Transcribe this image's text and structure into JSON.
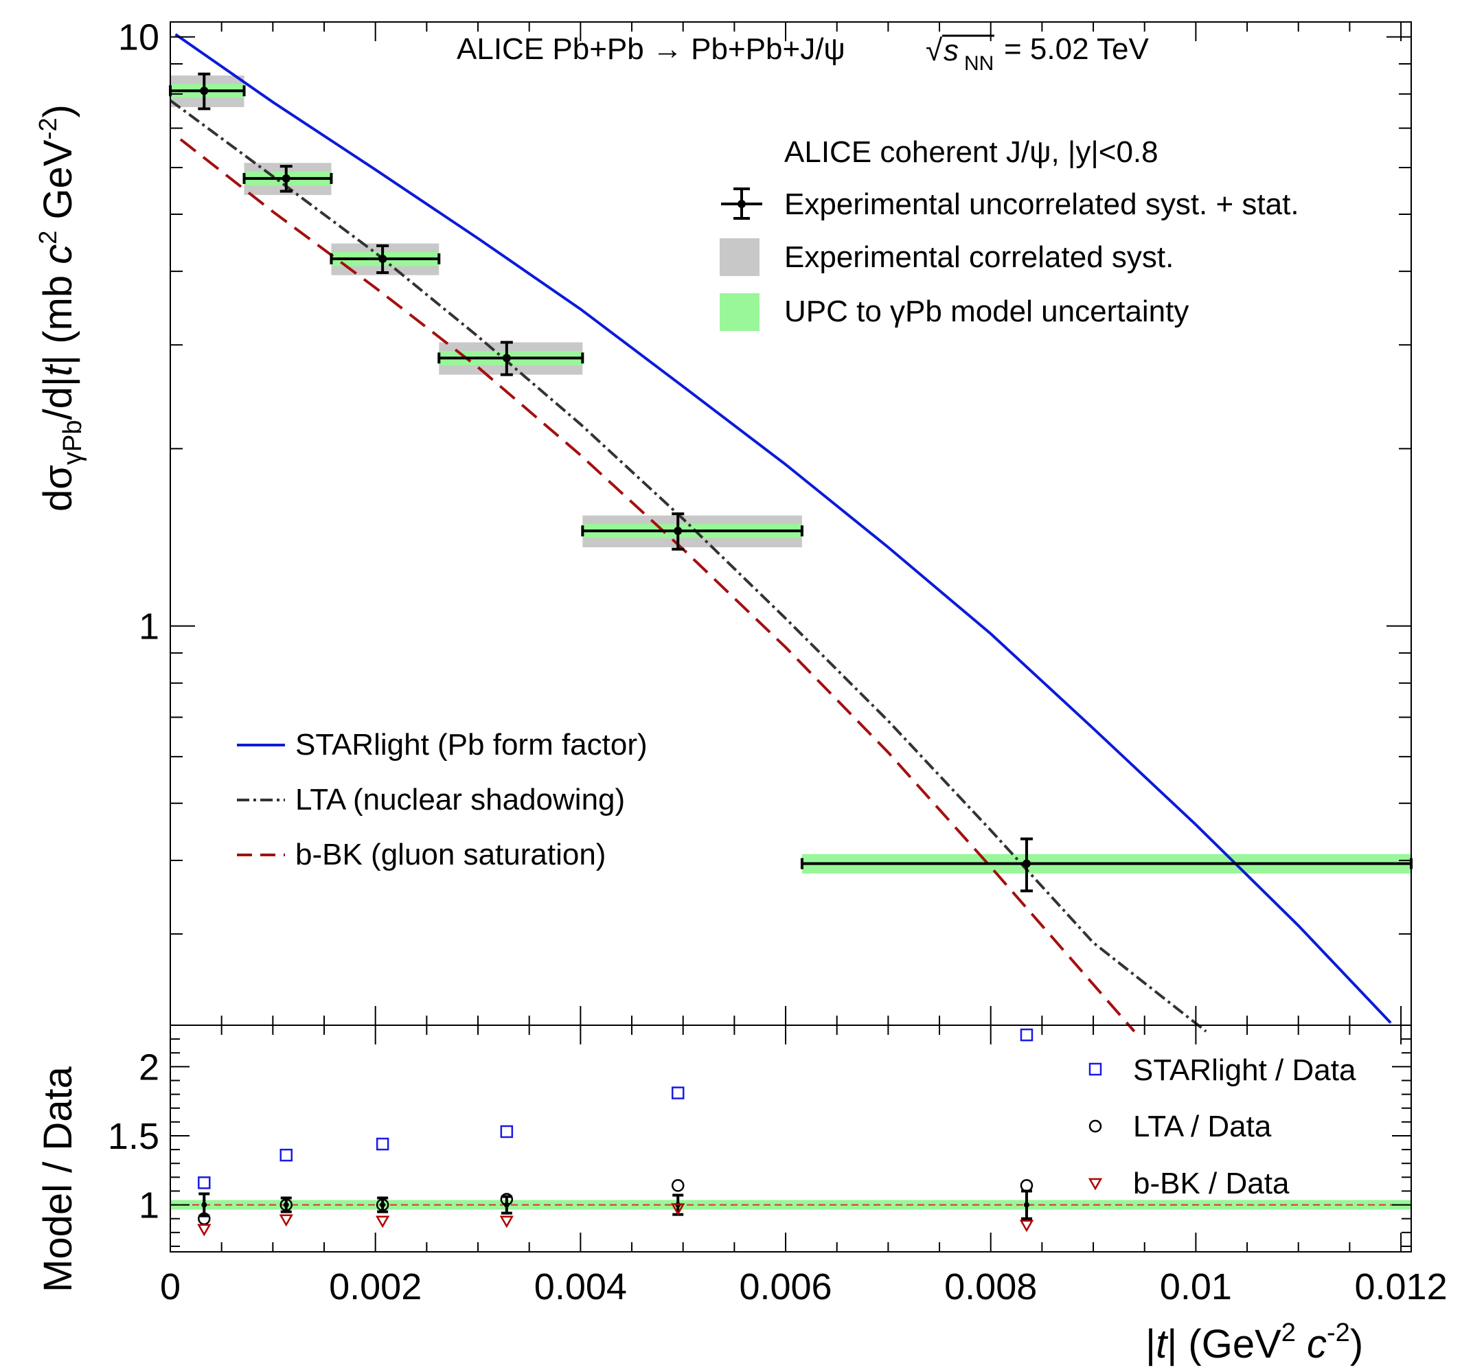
{
  "chart_data": {
    "type": "scatter",
    "title": "ALICE Pb+Pb → Pb+Pb+J/ψ",
    "energy_label": "= 5.02 TeV",
    "energy_symbol": {
      "sqrt": "√",
      "s": "s",
      "sub": "NN"
    },
    "xlabel": "|t| (GeV² c⁻²)",
    "xlabel_parts": {
      "open": "|",
      "t": "t",
      "close": "| (GeV",
      "sup2": "2",
      "c": " c",
      "supm2": "-2",
      "end": ")"
    },
    "ylabel": "dσγPb/d|t| (mb c² GeV⁻²)",
    "ylabel_parts": {
      "d": "dσ",
      "sub": "γPb",
      "mid": "/d|",
      "t": "t",
      "rest": "| (mb ",
      "c": "c",
      "sup2": "2",
      "gev": " GeV",
      "supm2": "-2",
      "end": ")"
    },
    "ratio_ylabel": "Model / Data",
    "xlim": [
      0,
      0.0121
    ],
    "ylim": [
      0.21,
      10.6
    ],
    "ratio_ylim": [
      0.66,
      2.3
    ],
    "x_ticks": [
      0,
      0.002,
      0.004,
      0.006,
      0.008,
      0.01,
      0.012
    ],
    "x_tick_labels": [
      "0",
      "0.002",
      "0.004",
      "0.006",
      "0.008",
      "0.01",
      "0.012"
    ],
    "y_major_ticks": [
      1,
      10
    ],
    "y_major_labels": [
      "1",
      "10"
    ],
    "ratio_ticks": [
      1,
      1.5,
      2
    ],
    "ratio_tick_labels": [
      "1",
      "1.5",
      "2"
    ],
    "data": {
      "name": "ALICE coherent J/ψ, |y|<0.8",
      "x": [
        0.00033,
        0.00113,
        0.00207,
        0.00328,
        0.00495,
        0.00835
      ],
      "x_low": [
        0,
        0.00072,
        0.00157,
        0.00262,
        0.00402,
        0.00616
      ],
      "x_high": [
        0.00072,
        0.00157,
        0.00262,
        0.00402,
        0.00616,
        0.0121
      ],
      "y": [
        8.1,
        5.75,
        4.2,
        2.85,
        1.45,
        0.395
      ],
      "err": [
        0.55,
        0.28,
        0.22,
        0.18,
        0.1,
        0.04
      ],
      "syst_corr_half": [
        0.5,
        0.36,
        0.26,
        0.18,
        0.09,
        0.0
      ],
      "model_unc_half": [
        0.22,
        0.16,
        0.12,
        0.08,
        0.04,
        0.015
      ]
    },
    "series": [
      {
        "name": "STARlight (Pb form factor)",
        "color": "#0b1bd9",
        "style": "solid",
        "x": [
          5e-05,
          0.001,
          0.002,
          0.003,
          0.004,
          0.005,
          0.006,
          0.007,
          0.008,
          0.009,
          0.01,
          0.011,
          0.0119
        ],
        "y": [
          10.1,
          7.75,
          5.95,
          4.55,
          3.45,
          2.55,
          1.88,
          1.36,
          0.97,
          0.67,
          0.46,
          0.31,
          0.212
        ]
      },
      {
        "name": "LTA (nuclear shadowing)",
        "color": "#333333",
        "style": "dashdot",
        "x": [
          0.0,
          0.001,
          0.002,
          0.003,
          0.004,
          0.005,
          0.006,
          0.007,
          0.008,
          0.009,
          0.0101
        ],
        "y": [
          7.8,
          5.8,
          4.3,
          3.1,
          2.2,
          1.52,
          1.03,
          0.69,
          0.45,
          0.29,
          0.205
        ]
      },
      {
        "name": "b-BK (gluon saturation)",
        "color": "#a50f0f",
        "style": "dashed",
        "x": [
          0.0001,
          0.001,
          0.002,
          0.003,
          0.004,
          0.005,
          0.006,
          0.007,
          0.008,
          0.0094
        ],
        "y": [
          6.7,
          5.05,
          3.75,
          2.75,
          1.95,
          1.35,
          0.92,
          0.61,
          0.39,
          0.205
        ]
      }
    ],
    "ratios": [
      {
        "name": "STARlight / Data",
        "color": "#1a1ae6",
        "marker": "square",
        "x": [
          0.00033,
          0.00113,
          0.00207,
          0.00328,
          0.00495,
          0.00835
        ],
        "values": [
          1.16,
          1.36,
          1.44,
          1.53,
          1.81,
          2.23
        ]
      },
      {
        "name": "LTA / Data",
        "color": "#000000",
        "marker": "circle",
        "x": [
          0.00033,
          0.00113,
          0.00207,
          0.00328,
          0.00495,
          0.00835
        ],
        "values": [
          0.9,
          1.0,
          1.0,
          1.04,
          1.14,
          1.14
        ]
      },
      {
        "name": "b-BK / Data",
        "color": "#b00000",
        "marker": "triangle-down",
        "x": [
          0.00033,
          0.00113,
          0.00207,
          0.00328,
          0.00495,
          0.00835
        ],
        "values": [
          0.82,
          0.89,
          0.88,
          0.88,
          0.97,
          0.85
        ]
      }
    ],
    "ratio_data_err": [
      0.08,
      0.05,
      0.05,
      0.06,
      0.07,
      0.1
    ],
    "legend_data": {
      "header": "ALICE coherent J/ψ, |y|<0.8",
      "entries": [
        "Experimental uncorrelated syst. + stat.",
        "Experimental correlated syst.",
        "UPC to γPb model uncertainty"
      ]
    },
    "colors": {
      "syst_band": "#c8c8c8",
      "model_band": "#99f799",
      "ratio_line": "#e03030"
    }
  }
}
